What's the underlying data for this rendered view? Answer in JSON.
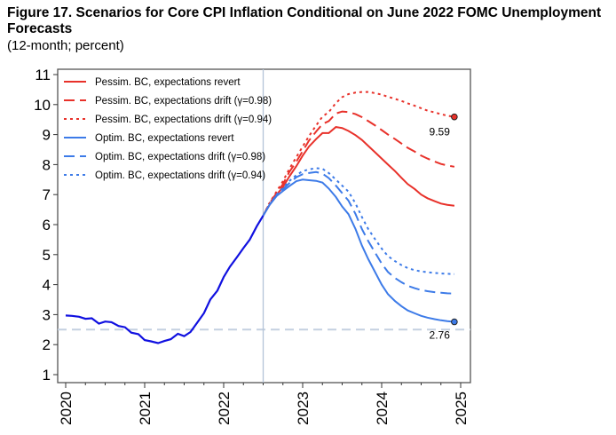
{
  "chart_data": {
    "type": "line",
    "title": "Figure 17. Scenarios for Core CPI Inflation Conditional on June 2022 FOMC Unemployment Forecasts",
    "subtitle": "(12-month; percent)",
    "xlabel": "",
    "ylabel": "",
    "xlim": [
      2019.9,
      2025.12
    ],
    "ylim": [
      0.75,
      11.3
    ],
    "yticks": [
      "1",
      "2",
      "3",
      "4",
      "5",
      "6",
      "7",
      "8",
      "9",
      "10",
      "11"
    ],
    "xticks": [
      "2020",
      "2021",
      "2022",
      "2023",
      "2024",
      "2025"
    ],
    "reference_line_y": 2.5,
    "vertical_line_x": 2022.5,
    "legend_position": "top-left",
    "annotations": [
      {
        "text": "9.59",
        "x": 2024.92,
        "y": 9.59
      },
      {
        "text": "2.76",
        "x": 2024.92,
        "y": 2.76
      }
    ],
    "history": {
      "color": "#1010e0",
      "points": [
        [
          2020.0,
          2.97
        ],
        [
          2020.08,
          2.96
        ],
        [
          2020.17,
          2.93
        ],
        [
          2020.25,
          2.86
        ],
        [
          2020.33,
          2.88
        ],
        [
          2020.42,
          2.7
        ],
        [
          2020.5,
          2.77
        ],
        [
          2020.58,
          2.75
        ],
        [
          2020.67,
          2.62
        ],
        [
          2020.75,
          2.58
        ],
        [
          2020.83,
          2.4
        ],
        [
          2020.92,
          2.35
        ],
        [
          2021.0,
          2.15
        ],
        [
          2021.08,
          2.11
        ],
        [
          2021.17,
          2.05
        ],
        [
          2021.25,
          2.12
        ],
        [
          2021.33,
          2.18
        ],
        [
          2021.42,
          2.36
        ],
        [
          2021.5,
          2.28
        ],
        [
          2021.58,
          2.42
        ],
        [
          2021.67,
          2.75
        ],
        [
          2021.75,
          3.05
        ],
        [
          2021.83,
          3.5
        ],
        [
          2021.92,
          3.8
        ],
        [
          2022.0,
          4.25
        ],
        [
          2022.08,
          4.6
        ],
        [
          2022.17,
          4.92
        ],
        [
          2022.25,
          5.22
        ],
        [
          2022.33,
          5.5
        ],
        [
          2022.42,
          5.95
        ],
        [
          2022.5,
          6.3
        ]
      ]
    },
    "series": [
      {
        "name": "Pessim. BC, expectations revert",
        "color": "#e8312a",
        "dash": "solid",
        "points": [
          [
            2022.5,
            6.3
          ],
          [
            2022.58,
            6.65
          ],
          [
            2022.67,
            7.0
          ],
          [
            2022.75,
            7.25
          ],
          [
            2022.83,
            7.6
          ],
          [
            2022.92,
            7.95
          ],
          [
            2023.0,
            8.3
          ],
          [
            2023.08,
            8.6
          ],
          [
            2023.17,
            8.85
          ],
          [
            2023.25,
            9.05
          ],
          [
            2023.33,
            9.05
          ],
          [
            2023.42,
            9.25
          ],
          [
            2023.5,
            9.22
          ],
          [
            2023.58,
            9.12
          ],
          [
            2023.67,
            8.98
          ],
          [
            2023.75,
            8.82
          ],
          [
            2023.83,
            8.62
          ],
          [
            2023.92,
            8.4
          ],
          [
            2024.0,
            8.2
          ],
          [
            2024.08,
            8.0
          ],
          [
            2024.17,
            7.78
          ],
          [
            2024.25,
            7.56
          ],
          [
            2024.33,
            7.35
          ],
          [
            2024.42,
            7.18
          ],
          [
            2024.5,
            7.0
          ],
          [
            2024.58,
            6.88
          ],
          [
            2024.67,
            6.78
          ],
          [
            2024.75,
            6.7
          ],
          [
            2024.83,
            6.66
          ],
          [
            2024.92,
            6.63
          ]
        ]
      },
      {
        "name": "Pessim. BC, expectations drift (γ=0.98)",
        "color": "#e8312a",
        "dash": "dash",
        "points": [
          [
            2022.5,
            6.3
          ],
          [
            2022.58,
            6.7
          ],
          [
            2022.67,
            7.05
          ],
          [
            2022.75,
            7.35
          ],
          [
            2022.83,
            7.75
          ],
          [
            2022.92,
            8.1
          ],
          [
            2023.0,
            8.45
          ],
          [
            2023.08,
            8.8
          ],
          [
            2023.17,
            9.1
          ],
          [
            2023.25,
            9.35
          ],
          [
            2023.33,
            9.45
          ],
          [
            2023.42,
            9.7
          ],
          [
            2023.5,
            9.77
          ],
          [
            2023.58,
            9.75
          ],
          [
            2023.67,
            9.68
          ],
          [
            2023.75,
            9.58
          ],
          [
            2023.83,
            9.45
          ],
          [
            2023.92,
            9.3
          ],
          [
            2024.0,
            9.15
          ],
          [
            2024.08,
            9.0
          ],
          [
            2024.17,
            8.85
          ],
          [
            2024.25,
            8.7
          ],
          [
            2024.33,
            8.56
          ],
          [
            2024.42,
            8.43
          ],
          [
            2024.5,
            8.3
          ],
          [
            2024.58,
            8.2
          ],
          [
            2024.67,
            8.1
          ],
          [
            2024.75,
            8.02
          ],
          [
            2024.83,
            7.97
          ],
          [
            2024.92,
            7.93
          ]
        ]
      },
      {
        "name": "Pessim. BC, expectations drift (γ=0.94)",
        "color": "#e8312a",
        "dash": "dot",
        "points": [
          [
            2022.5,
            6.3
          ],
          [
            2022.58,
            6.72
          ],
          [
            2022.67,
            7.1
          ],
          [
            2022.75,
            7.45
          ],
          [
            2022.83,
            7.85
          ],
          [
            2022.92,
            8.25
          ],
          [
            2023.0,
            8.6
          ],
          [
            2023.08,
            8.95
          ],
          [
            2023.17,
            9.3
          ],
          [
            2023.25,
            9.6
          ],
          [
            2023.33,
            9.75
          ],
          [
            2023.42,
            10.05
          ],
          [
            2023.5,
            10.25
          ],
          [
            2023.58,
            10.35
          ],
          [
            2023.67,
            10.4
          ],
          [
            2023.75,
            10.42
          ],
          [
            2023.83,
            10.42
          ],
          [
            2023.92,
            10.38
          ],
          [
            2024.0,
            10.33
          ],
          [
            2024.08,
            10.26
          ],
          [
            2024.17,
            10.19
          ],
          [
            2024.25,
            10.12
          ],
          [
            2024.33,
            10.04
          ],
          [
            2024.42,
            9.96
          ],
          [
            2024.5,
            9.88
          ],
          [
            2024.58,
            9.8
          ],
          [
            2024.67,
            9.74
          ],
          [
            2024.75,
            9.68
          ],
          [
            2024.83,
            9.63
          ],
          [
            2024.92,
            9.59
          ]
        ]
      },
      {
        "name": "Optim. BC, expectations revert",
        "color": "#3d7be8",
        "dash": "solid",
        "points": [
          [
            2022.5,
            6.3
          ],
          [
            2022.58,
            6.65
          ],
          [
            2022.67,
            6.95
          ],
          [
            2022.75,
            7.12
          ],
          [
            2022.83,
            7.28
          ],
          [
            2022.92,
            7.45
          ],
          [
            2023.0,
            7.5
          ],
          [
            2023.08,
            7.48
          ],
          [
            2023.17,
            7.46
          ],
          [
            2023.25,
            7.4
          ],
          [
            2023.33,
            7.2
          ],
          [
            2023.42,
            6.92
          ],
          [
            2023.5,
            6.6
          ],
          [
            2023.58,
            6.35
          ],
          [
            2023.67,
            5.85
          ],
          [
            2023.75,
            5.3
          ],
          [
            2023.83,
            4.85
          ],
          [
            2023.92,
            4.4
          ],
          [
            2024.0,
            4.0
          ],
          [
            2024.08,
            3.68
          ],
          [
            2024.17,
            3.45
          ],
          [
            2024.25,
            3.28
          ],
          [
            2024.33,
            3.14
          ],
          [
            2024.42,
            3.04
          ],
          [
            2024.5,
            2.96
          ],
          [
            2024.58,
            2.9
          ],
          [
            2024.67,
            2.85
          ],
          [
            2024.75,
            2.81
          ],
          [
            2024.83,
            2.78
          ],
          [
            2024.92,
            2.76
          ]
        ]
      },
      {
        "name": "Optim. BC, expectations drift (γ=0.98)",
        "color": "#3d7be8",
        "dash": "dash",
        "points": [
          [
            2022.5,
            6.3
          ],
          [
            2022.58,
            6.66
          ],
          [
            2022.67,
            6.98
          ],
          [
            2022.75,
            7.18
          ],
          [
            2022.83,
            7.38
          ],
          [
            2022.92,
            7.58
          ],
          [
            2023.0,
            7.68
          ],
          [
            2023.08,
            7.72
          ],
          [
            2023.17,
            7.75
          ],
          [
            2023.25,
            7.7
          ],
          [
            2023.33,
            7.55
          ],
          [
            2023.42,
            7.3
          ],
          [
            2023.5,
            7.05
          ],
          [
            2023.58,
            6.8
          ],
          [
            2023.67,
            6.35
          ],
          [
            2023.75,
            5.85
          ],
          [
            2023.83,
            5.45
          ],
          [
            2023.92,
            5.05
          ],
          [
            2024.0,
            4.7
          ],
          [
            2024.08,
            4.42
          ],
          [
            2024.17,
            4.22
          ],
          [
            2024.25,
            4.08
          ],
          [
            2024.33,
            3.96
          ],
          [
            2024.42,
            3.88
          ],
          [
            2024.5,
            3.82
          ],
          [
            2024.58,
            3.78
          ],
          [
            2024.67,
            3.75
          ],
          [
            2024.75,
            3.73
          ],
          [
            2024.83,
            3.71
          ],
          [
            2024.92,
            3.7
          ]
        ]
      },
      {
        "name": "Optim. BC, expectations drift (γ=0.94)",
        "color": "#3d7be8",
        "dash": "dot",
        "points": [
          [
            2022.5,
            6.3
          ],
          [
            2022.58,
            6.67
          ],
          [
            2022.67,
            7.0
          ],
          [
            2022.75,
            7.22
          ],
          [
            2022.83,
            7.45
          ],
          [
            2022.92,
            7.65
          ],
          [
            2023.0,
            7.78
          ],
          [
            2023.08,
            7.84
          ],
          [
            2023.17,
            7.88
          ],
          [
            2023.25,
            7.86
          ],
          [
            2023.33,
            7.72
          ],
          [
            2023.42,
            7.5
          ],
          [
            2023.5,
            7.3
          ],
          [
            2023.58,
            7.1
          ],
          [
            2023.67,
            6.7
          ],
          [
            2023.75,
            6.25
          ],
          [
            2023.83,
            5.85
          ],
          [
            2023.92,
            5.5
          ],
          [
            2024.0,
            5.2
          ],
          [
            2024.08,
            4.95
          ],
          [
            2024.17,
            4.78
          ],
          [
            2024.25,
            4.65
          ],
          [
            2024.33,
            4.55
          ],
          [
            2024.42,
            4.48
          ],
          [
            2024.5,
            4.44
          ],
          [
            2024.58,
            4.41
          ],
          [
            2024.67,
            4.39
          ],
          [
            2024.75,
            4.37
          ],
          [
            2024.83,
            4.36
          ],
          [
            2024.92,
            4.35
          ]
        ]
      }
    ]
  }
}
